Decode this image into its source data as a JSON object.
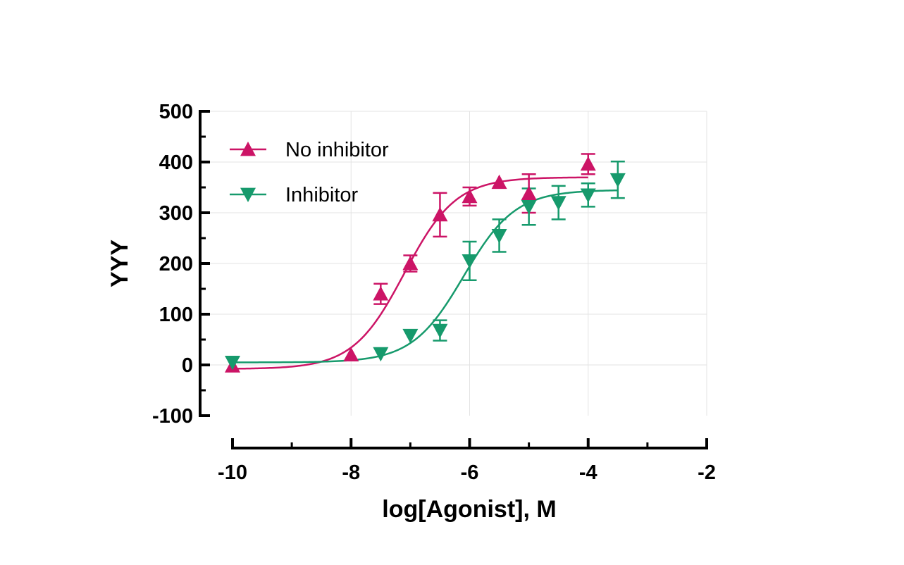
{
  "chart_data": {
    "type": "scatter",
    "xlabel": "log[Agonist], M",
    "ylabel": "YYY",
    "xlim": [
      -10,
      -2
    ],
    "ylim": [
      -100,
      500
    ],
    "x_ticks": [
      -10,
      -8,
      -6,
      -4,
      -2
    ],
    "x_tick_labels": [
      "-10",
      "-8",
      "-6",
      "-4",
      "-2"
    ],
    "y_ticks": [
      -100,
      0,
      100,
      200,
      300,
      400,
      500
    ],
    "y_tick_labels": [
      "-100",
      "0",
      "100",
      "200",
      "300",
      "400",
      "500"
    ],
    "grid": true,
    "legend_position": "top-left",
    "series": [
      {
        "name": "No inhibitor",
        "color": "#cc1466",
        "marker": "triangle-up",
        "x": [
          -10,
          -8,
          -7.5,
          -7,
          -6.5,
          -6,
          -5.5,
          -5,
          -4
        ],
        "y": [
          -2,
          20,
          140,
          200,
          296,
          332,
          360,
          338,
          396
        ],
        "err": [
          0,
          0,
          20,
          16,
          43,
          18,
          0,
          38,
          20
        ],
        "fit": {
          "bottom": -8,
          "top": 370,
          "logEC50": -7.1,
          "hill": 1.0,
          "x_range": [
            -10,
            -4
          ]
        }
      },
      {
        "name": "Inhibitor",
        "color": "#169a6c",
        "marker": "triangle-down",
        "x": [
          -10,
          -7.5,
          -7,
          -6.5,
          -6,
          -5.5,
          -5,
          -4.5,
          -4,
          -3.5
        ],
        "y": [
          5,
          22,
          58,
          68,
          205,
          255,
          312,
          320,
          335,
          365
        ],
        "err": [
          0,
          0,
          0,
          20,
          38,
          32,
          36,
          33,
          23,
          36
        ],
        "fit": {
          "bottom": 5,
          "top": 345,
          "logEC50": -6.1,
          "hill": 1.0,
          "x_range": [
            -10,
            -3.5
          ]
        }
      }
    ]
  }
}
